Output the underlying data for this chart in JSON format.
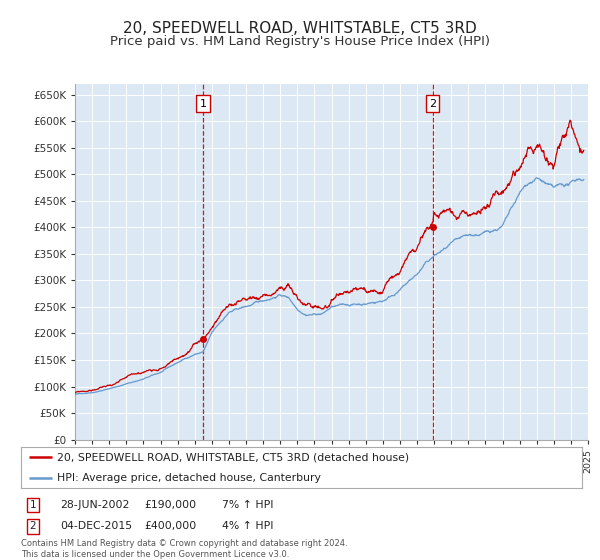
{
  "title": "20, SPEEDWELL ROAD, WHITSTABLE, CT5 3RD",
  "subtitle": "Price paid vs. HM Land Registry's House Price Index (HPI)",
  "title_fontsize": 11,
  "subtitle_fontsize": 9.5,
  "ylim": [
    0,
    670000
  ],
  "yticks": [
    0,
    50000,
    100000,
    150000,
    200000,
    250000,
    300000,
    350000,
    400000,
    450000,
    500000,
    550000,
    600000,
    650000
  ],
  "plot_bg": "#dce9f5",
  "grid_color": "#ffffff",
  "fig_bg": "#ffffff",
  "sale1_date": 2002.49,
  "sale1_price": 190000,
  "sale2_date": 2015.92,
  "sale2_price": 400000,
  "house_color": "#cc0000",
  "hpi_color": "#6699cc",
  "legend_label_house": "20, SPEEDWELL ROAD, WHITSTABLE, CT5 3RD (detached house)",
  "legend_label_hpi": "HPI: Average price, detached house, Canterbury",
  "annotation1_date": "28-JUN-2002",
  "annotation1_price": "£190,000",
  "annotation1_hpi": "7% ↑ HPI",
  "annotation2_date": "04-DEC-2015",
  "annotation2_price": "£400,000",
  "annotation2_hpi": "4% ↑ HPI",
  "footer": "Contains HM Land Registry data © Crown copyright and database right 2024.\nThis data is licensed under the Open Government Licence v3.0.",
  "hpi_base_points": {
    "years": [
      1995.0,
      1996.0,
      1997.0,
      1998.0,
      1999.0,
      2000.0,
      2001.0,
      2002.0,
      2002.5,
      2003.0,
      2004.0,
      2005.0,
      2006.0,
      2007.0,
      2007.5,
      2008.0,
      2008.5,
      2009.0,
      2009.5,
      2010.0,
      2011.0,
      2012.0,
      2013.0,
      2014.0,
      2015.0,
      2015.5,
      2016.0,
      2017.0,
      2018.0,
      2019.0,
      2020.0,
      2021.0,
      2021.5,
      2022.0,
      2022.5,
      2023.0,
      2024.0,
      2024.5
    ],
    "values": [
      85000,
      90000,
      98000,
      108000,
      118000,
      130000,
      148000,
      165000,
      170000,
      205000,
      245000,
      255000,
      265000,
      280000,
      275000,
      255000,
      248000,
      250000,
      252000,
      265000,
      268000,
      272000,
      280000,
      305000,
      335000,
      355000,
      370000,
      390000,
      395000,
      400000,
      415000,
      470000,
      490000,
      500000,
      490000,
      475000,
      480000,
      490000
    ]
  },
  "house_base_points": {
    "years": [
      1995.0,
      1996.0,
      1997.0,
      1998.0,
      1999.0,
      2000.0,
      2001.0,
      2002.0,
      2002.49,
      2003.0,
      2004.0,
      2005.0,
      2006.0,
      2007.0,
      2007.5,
      2008.0,
      2008.5,
      2009.0,
      2009.5,
      2010.0,
      2011.0,
      2012.0,
      2013.0,
      2014.0,
      2015.0,
      2015.92,
      2016.0,
      2017.0,
      2018.0,
      2019.0,
      2020.0,
      2021.0,
      2021.5,
      2022.0,
      2022.5,
      2023.0,
      2023.5,
      2024.0,
      2024.5
    ],
    "values": [
      88000,
      93000,
      103000,
      113000,
      124000,
      138000,
      158000,
      178000,
      190000,
      218000,
      258000,
      268000,
      278000,
      295000,
      295000,
      270000,
      258000,
      256000,
      258000,
      272000,
      278000,
      278000,
      288000,
      315000,
      350000,
      400000,
      410000,
      430000,
      440000,
      445000,
      455000,
      510000,
      545000,
      560000,
      545000,
      525000,
      565000,
      580000,
      545000
    ]
  }
}
